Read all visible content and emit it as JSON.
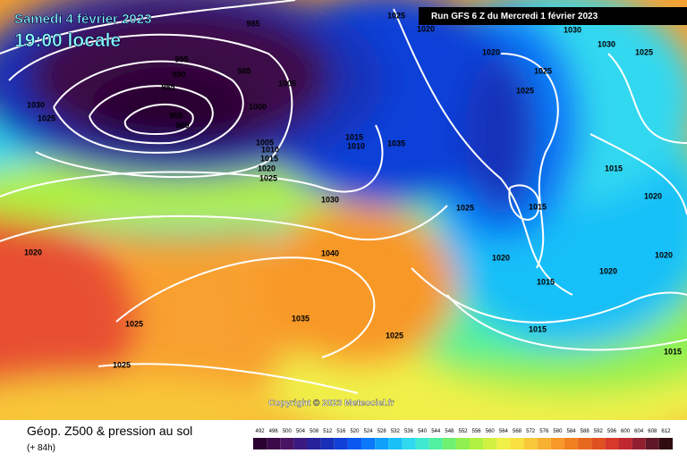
{
  "header": {
    "date": "Samedi 4 février 2023",
    "time": "19:00 locale",
    "run": "Run GFS 6 Z du Mercredi 1 février 2023"
  },
  "copyright": "Copyright © 2023 Meteociel.fr",
  "footer": {
    "title": "Géop. Z500 & pression au sol",
    "subtitle": "(+ 84h)"
  },
  "isobar_labels": [
    1025,
    1020,
    1030,
    1030,
    1025,
    1020,
    1025,
    1025,
    1030,
    1025,
    985,
    995,
    990,
    985,
    1005,
    1000,
    985,
    955,
    960,
    1005,
    1010,
    1015,
    1020,
    1025,
    1015,
    1010,
    1035,
    1030,
    1025,
    1015,
    1015,
    1020,
    1020,
    1040,
    1020,
    1020,
    1020,
    1015,
    1025,
    1035,
    1025,
    1015,
    1015,
    1025
  ],
  "legend": {
    "values": [
      492,
      496,
      500,
      504,
      508,
      512,
      516,
      520,
      524,
      528,
      532,
      536,
      540,
      544,
      548,
      552,
      556,
      560,
      564,
      568,
      572,
      576,
      580,
      584,
      588,
      592,
      596,
      600,
      604,
      608,
      612
    ],
    "colors": [
      "#2a0030",
      "#3c0a48",
      "#4a1464",
      "#3a1a80",
      "#26209a",
      "#1830b8",
      "#1040d8",
      "#0a58f0",
      "#0a78f8",
      "#10a0fa",
      "#18c0f8",
      "#30d8f0",
      "#40e8d0",
      "#50f0a0",
      "#70f070",
      "#90f050",
      "#b0f040",
      "#d0f040",
      "#f0f048",
      "#f8e040",
      "#f8c838",
      "#f8b030",
      "#f89828",
      "#f08020",
      "#e86820",
      "#e05020",
      "#d83828",
      "#c02830",
      "#902030",
      "#601828",
      "#300c10"
    ]
  }
}
